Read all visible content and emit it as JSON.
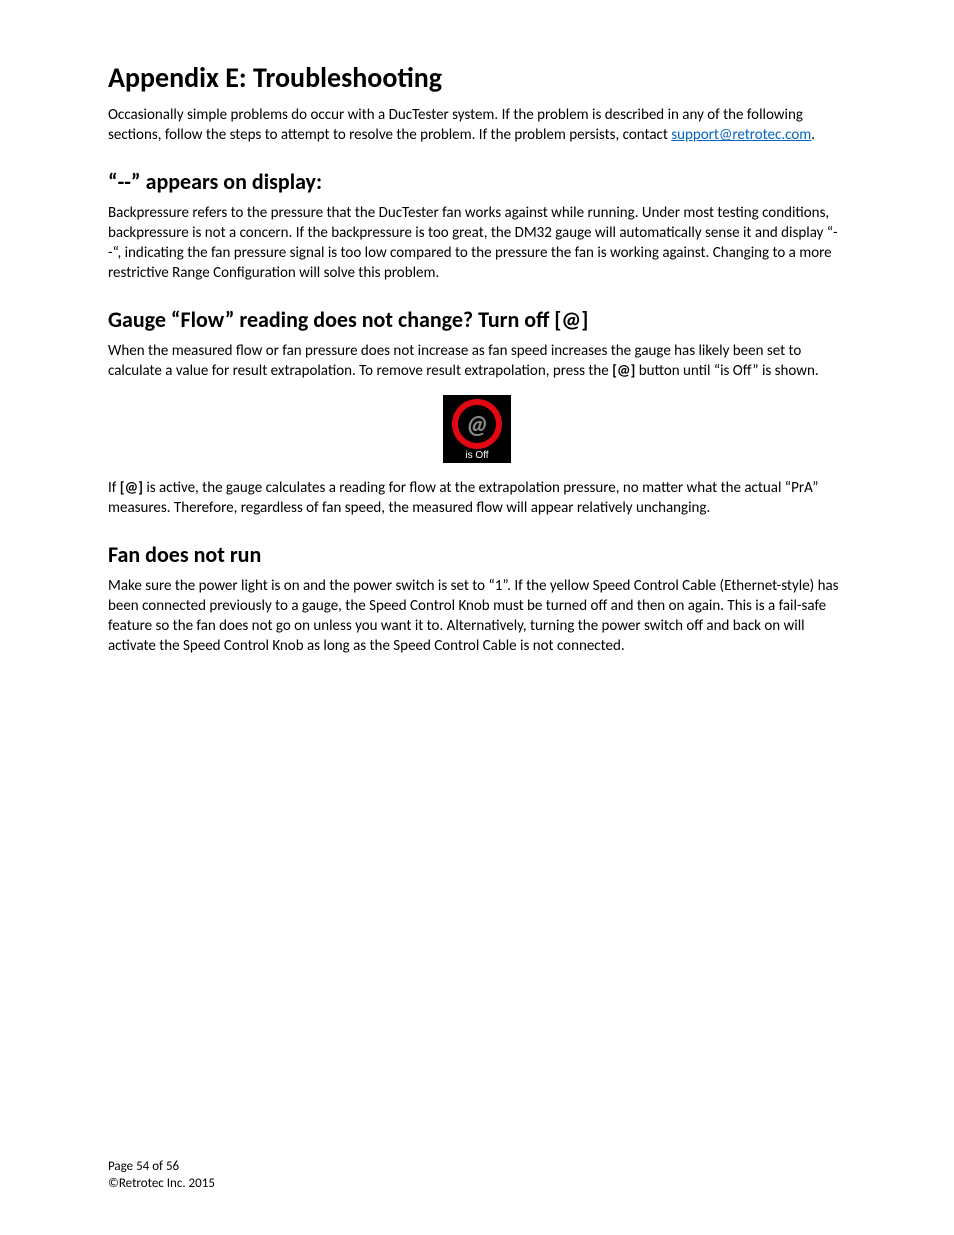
{
  "title": "Appendix E:  Troubleshooting",
  "intro_parts": {
    "pre": "Occasionally simple problems do occur with a DucTester system.  If the problem is described in any of the following sections, follow the steps to attempt to resolve the problem.  If the problem persists, contact ",
    "email": "support@retrotec.com",
    "post": "."
  },
  "section1": {
    "heading": "“--” appears on display:",
    "body": "Backpressure refers to the pressure that the DucTester fan works against while running.  Under most testing conditions, backpressure is not a concern.  If the backpressure is too great, the DM32 gauge will automatically sense it and display “--“, indicating the fan pressure signal is too low compared to the pressure the fan is working against.  Changing to a more restrictive Range Configuration will solve this problem."
  },
  "section2": {
    "heading": "Gauge “Flow” reading does not change? Turn off [@]",
    "body1_parts": {
      "pre": "When the measured flow or fan pressure does not increase as fan speed increases the gauge has likely been set to calculate a value for result extrapolation.  To remove result extrapolation, press the ",
      "bold": "[@]",
      "post": " button until “is Off” is shown."
    },
    "icon": {
      "glyph": "@",
      "label": "is Off",
      "bg_color": "#000000",
      "ring_color": "#e30613",
      "label_color": "#ffffff"
    },
    "body2_parts": {
      "pre": "If ",
      "bold": "[@]",
      "post": " is active, the gauge calculates a reading for flow at the extrapolation pressure, no matter what the actual “PrA” measures.  Therefore, regardless of fan speed, the measured flow will appear relatively unchanging."
    }
  },
  "section3": {
    "heading": "Fan does not run",
    "body": "Make sure the power light is on and the power switch is set to “1”.  If the yellow Speed Control Cable (Ethernet-style) has been connected previously to a gauge, the Speed Control Knob must be turned off and then on again.  This is a fail-safe feature so the fan does not go on unless you want it to.  Alternatively, turning the power switch off and back on will activate the Speed Control Knob as long as the Speed Control Cable is not connected."
  },
  "footer": {
    "line1": "Page 54 of 56",
    "line2": "©Retrotec Inc. 2015"
  },
  "colors": {
    "link": "#0563c1",
    "text": "#000000",
    "background": "#ffffff"
  },
  "fonts": {
    "body_family": "Calibri",
    "h1_size_pt": 21,
    "h2_size_pt": 16,
    "body_size_pt": 11
  }
}
